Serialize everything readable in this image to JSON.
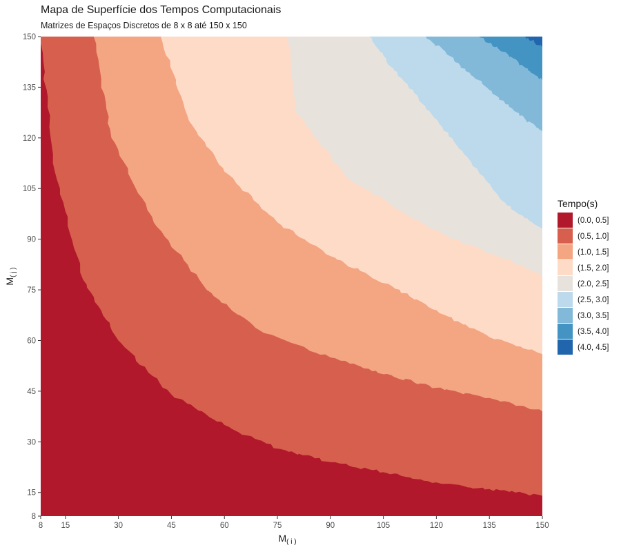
{
  "chart_data": {
    "type": "heatmap",
    "title": "Mapa de Superfície dos Tempos Computacionais",
    "subtitle": "Matrizes de Espaços Discretos de 8 x 8 até 150 x 150",
    "xlabel": {
      "main": "M",
      "sub": "( i )"
    },
    "ylabel": {
      "main": "M",
      "sub": "( j )"
    },
    "xlim": [
      8,
      150
    ],
    "ylim": [
      8,
      150
    ],
    "x_ticks": [
      8,
      15,
      30,
      45,
      60,
      75,
      90,
      105,
      120,
      135,
      150
    ],
    "y_ticks": [
      8,
      15,
      30,
      45,
      60,
      75,
      90,
      105,
      120,
      135,
      150
    ],
    "legend": {
      "title": "Tempo(s)",
      "position": "right",
      "bins": [
        {
          "label": "(0.0, 0.5]",
          "color": "#b2182b"
        },
        {
          "label": "(0.5, 1.0]",
          "color": "#d6604d"
        },
        {
          "label": "(1.0, 1.5]",
          "color": "#f4a582"
        },
        {
          "label": "(1.5, 2.0]",
          "color": "#fddbc7"
        },
        {
          "label": "(2.0, 2.5]",
          "color": "#e8e2dd"
        },
        {
          "label": "(2.5, 3.0]",
          "color": "#bcdaeb"
        },
        {
          "label": "(3.0, 3.5]",
          "color": "#82b9d9"
        },
        {
          "label": "(3.5, 4.0]",
          "color": "#4393c3"
        },
        {
          "label": "(4.0, 4.5]",
          "color": "#2166ac"
        }
      ]
    },
    "contour_boundaries": [
      {
        "level": 0.5,
        "points": [
          [
            8,
            148
          ],
          [
            12,
            110
          ],
          [
            20,
            78
          ],
          [
            30,
            60
          ],
          [
            45,
            44
          ],
          [
            60,
            35
          ],
          [
            75,
            28
          ],
          [
            90,
            24
          ],
          [
            105,
            21
          ],
          [
            120,
            18
          ],
          [
            135,
            16
          ],
          [
            150,
            14
          ]
        ]
      },
      {
        "level": 1.0,
        "points": [
          [
            23,
            150
          ],
          [
            28,
            120
          ],
          [
            40,
            95
          ],
          [
            55,
            75
          ],
          [
            70,
            63
          ],
          [
            90,
            55
          ],
          [
            105,
            50
          ],
          [
            120,
            46
          ],
          [
            135,
            43
          ],
          [
            150,
            39
          ]
        ]
      },
      {
        "level": 1.5,
        "points": [
          [
            42,
            150
          ],
          [
            50,
            125
          ],
          [
            60,
            110
          ],
          [
            75,
            95
          ],
          [
            90,
            85
          ],
          [
            105,
            77
          ],
          [
            120,
            69
          ],
          [
            135,
            61
          ],
          [
            150,
            56
          ]
        ]
      },
      {
        "level": 2.0,
        "points": [
          [
            78,
            150
          ],
          [
            80,
            128
          ],
          [
            95,
            108
          ],
          [
            112,
            97
          ],
          [
            125,
            90
          ],
          [
            140,
            84
          ],
          [
            150,
            79
          ]
        ]
      },
      {
        "level": 2.5,
        "points": [
          [
            101,
            150
          ],
          [
            108,
            140
          ],
          [
            118,
            128
          ],
          [
            128,
            115
          ],
          [
            140,
            100
          ],
          [
            150,
            93
          ]
        ]
      },
      {
        "level": 3.0,
        "points": [
          [
            117,
            150
          ],
          [
            125,
            143
          ],
          [
            133,
            136
          ],
          [
            142,
            128
          ],
          [
            150,
            122
          ]
        ]
      },
      {
        "level": 3.5,
        "points": [
          [
            132,
            150
          ],
          [
            140,
            145
          ],
          [
            146,
            140
          ],
          [
            150,
            137
          ]
        ]
      },
      {
        "level": 4.0,
        "points": [
          [
            145,
            150
          ],
          [
            150,
            147
          ]
        ]
      }
    ],
    "grid": false
  }
}
